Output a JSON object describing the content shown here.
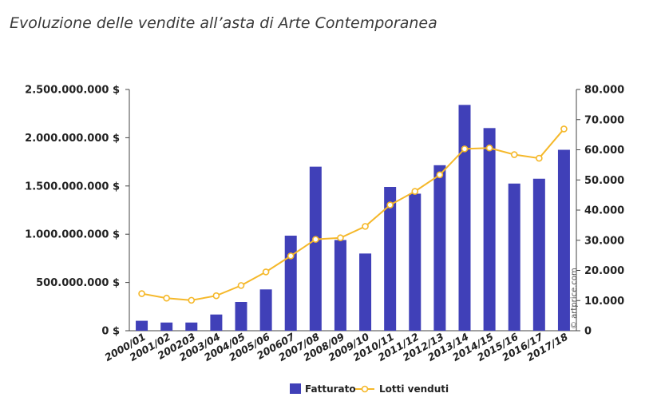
{
  "title": "Evoluzione delle vendite all’asta di Arte Contemporanea",
  "credit": "© artprice.com",
  "colors": {
    "bar": "#4040b8",
    "line": "#f5b82a",
    "axis": "#444444"
  },
  "chart_data": {
    "type": "bar",
    "categories": [
      "2000/01",
      "2001/02",
      "200203",
      "2003/04",
      "2004/05",
      "2005/06",
      "200607",
      "2007/08",
      "2008/09",
      "2009/10",
      "2010/11",
      "2011/12",
      "2012/13",
      "2013/14",
      "2014/15",
      "2015/16",
      "2016/17",
      "2017/18"
    ],
    "series": [
      {
        "name": "Fatturato",
        "type": "bar",
        "axis": "left",
        "values": [
          103000000,
          85000000,
          85000000,
          168000000,
          298000000,
          428000000,
          985000000,
          1700000000,
          940000000,
          800000000,
          1490000000,
          1420000000,
          1715000000,
          2340000000,
          2100000000,
          1525000000,
          1575000000,
          1875000000
        ]
      },
      {
        "name": "Lotti venduti",
        "type": "line",
        "axis": "right",
        "values": [
          12300,
          10800,
          10100,
          11600,
          15000,
          19500,
          24800,
          30300,
          30800,
          34600,
          41700,
          46200,
          51700,
          60300,
          60600,
          58400,
          57200,
          66900
        ]
      }
    ],
    "y_left": {
      "min": 0,
      "max": 2500000000,
      "ticks": [
        "0 $",
        "500.000.000 $",
        "1.000.000.000 $",
        "1.500.000.000 $",
        "2.000.000.000 $",
        "2.500.000.000 $"
      ]
    },
    "y_right": {
      "min": 0,
      "max": 80000,
      "ticks": [
        "0",
        "10.000",
        "20.000",
        "30.000",
        "40.000",
        "50.000",
        "60.000",
        "70.000",
        "80.000"
      ]
    },
    "grid": false,
    "legend": "bottom-center"
  }
}
